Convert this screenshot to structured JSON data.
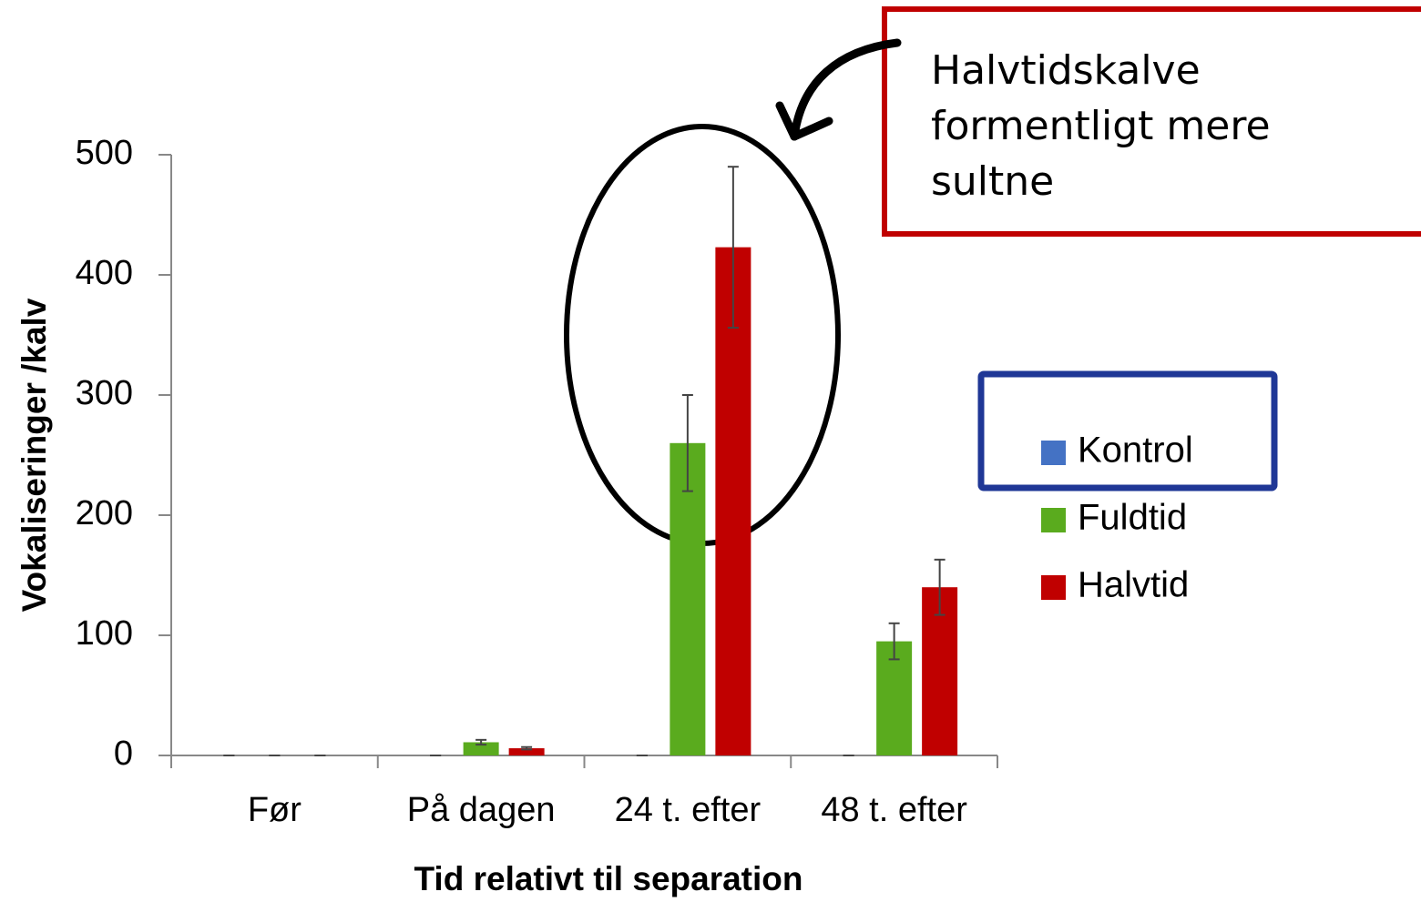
{
  "chart_data": {
    "type": "bar",
    "x_label": "Tid relativt til separation",
    "y_label": "Vokaliseringer /kalv",
    "categories": [
      "Før",
      "På dagen",
      "24 t. efter",
      "48 t. efter"
    ],
    "series": [
      {
        "name": "Kontrol",
        "color": "#4472c4",
        "values": [
          0,
          0,
          0,
          0
        ],
        "errors": [
          0,
          0,
          0,
          0
        ]
      },
      {
        "name": "Fuldtid",
        "color": "#5aab1e",
        "values": [
          0,
          11,
          260,
          95
        ],
        "errors": [
          0,
          2,
          40,
          15
        ]
      },
      {
        "name": "Halvtid",
        "color": "#c00000",
        "values": [
          0,
          6,
          423,
          140
        ],
        "errors": [
          0,
          1,
          67,
          23
        ]
      }
    ],
    "ylim": [
      0,
      500
    ],
    "yticks": [
      0,
      100,
      200,
      300,
      400,
      500
    ],
    "annotation": [
      "Halvtidskalve",
      "formentligt mere",
      "sultne"
    ]
  }
}
